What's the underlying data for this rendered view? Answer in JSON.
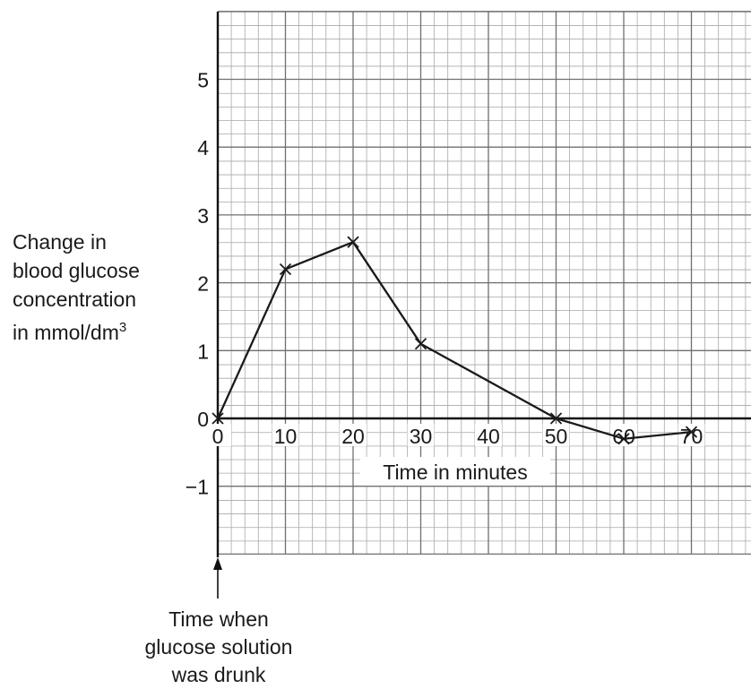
{
  "chart_data": {
    "type": "line",
    "title": "",
    "xlabel": "Time in minutes",
    "ylabel": [
      "Change in",
      "blood glucose",
      "concentration",
      "in mmol/dm",
      "3"
    ],
    "x": [
      0,
      10,
      20,
      30,
      50,
      60,
      70
    ],
    "series": [
      {
        "values": [
          0,
          2.2,
          2.6,
          1.1,
          0,
          -0.3,
          -0.2
        ],
        "marker": "x",
        "color": "#1a1a1a"
      }
    ],
    "xlim": [
      0,
      80
    ],
    "ylim": [
      -2,
      6
    ],
    "x_ticks": [
      "0",
      "10",
      "20",
      "30",
      "40",
      "50",
      "60",
      "70"
    ],
    "y_ticks": [
      "5",
      "4",
      "3",
      "2",
      "1",
      "0",
      "−1"
    ],
    "grid": true,
    "legend": "none"
  },
  "annotation": {
    "lines": [
      "Time when",
      "glucose solution",
      "was drunk"
    ]
  }
}
